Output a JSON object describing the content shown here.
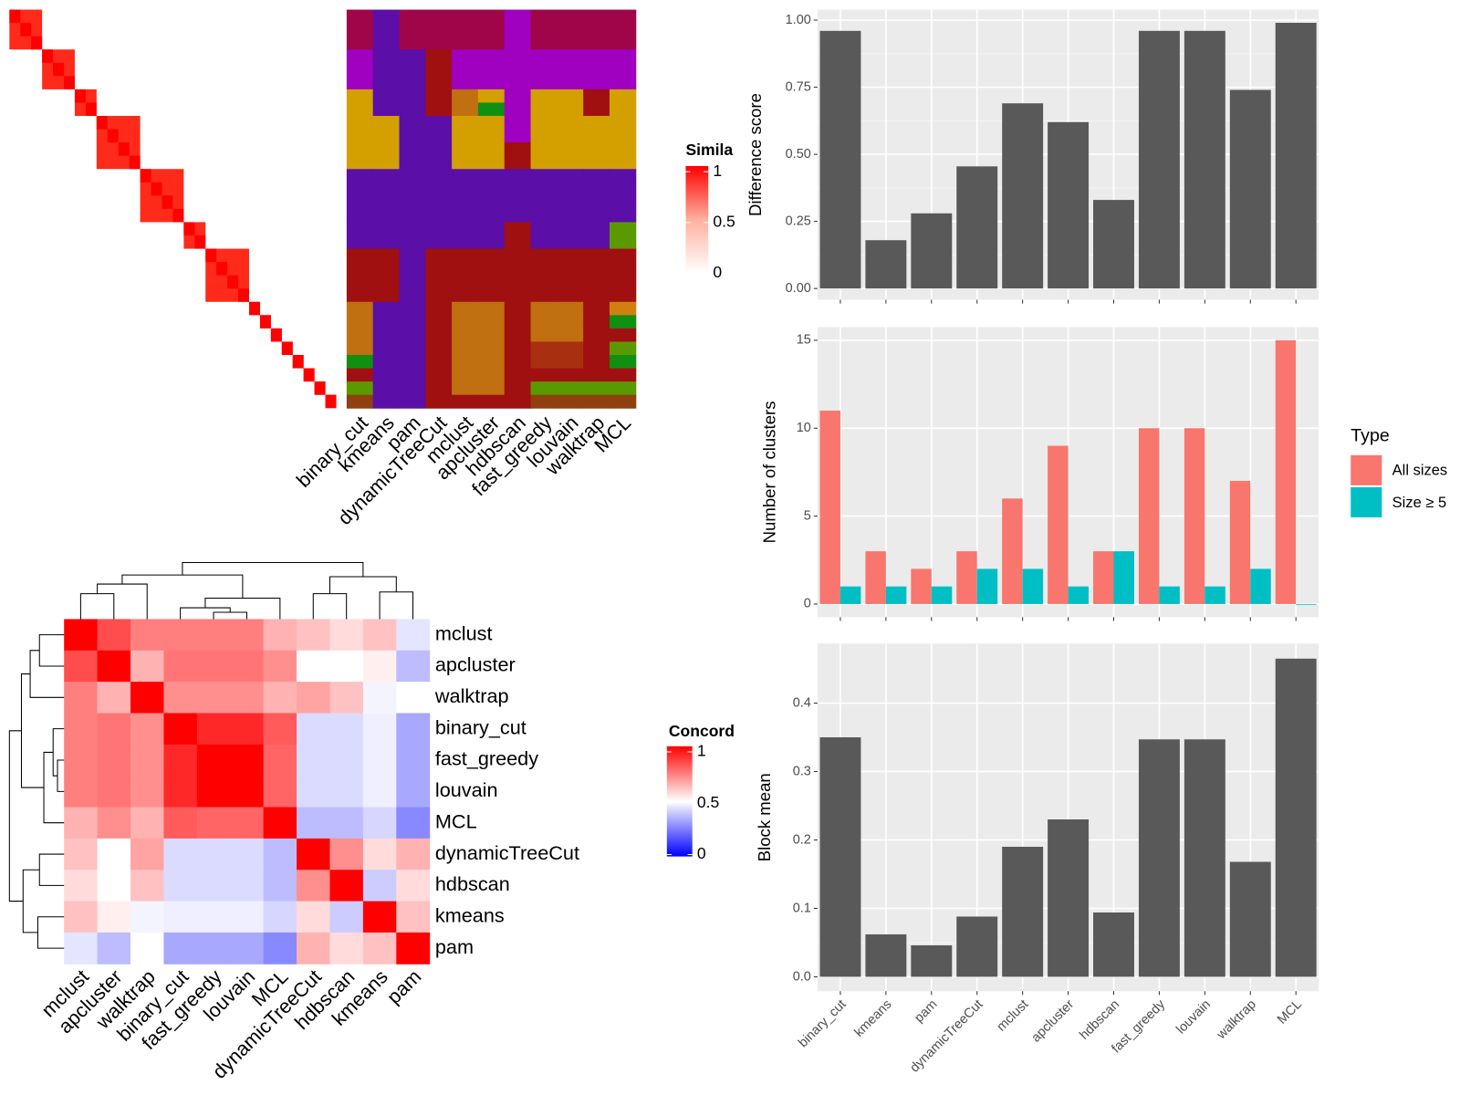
{
  "similarity": {
    "legend_title": "Simila",
    "ticks": [
      1,
      0.5,
      0
    ],
    "blocks": [
      3,
      3,
      2,
      4,
      4,
      2,
      4,
      1,
      1,
      1,
      1,
      1,
      1,
      1,
      1
    ]
  },
  "assignment": {
    "methods": [
      "binary_cut",
      "kmeans",
      "pam",
      "dynamicTreeCut",
      "mclust",
      "apcluster",
      "hdbscan",
      "fast_greedy",
      "louvain",
      "walktrap",
      "MCL"
    ],
    "rows": [
      {
        "n": 3,
        "colors": [
          "#a0054a",
          "#5b0fa8",
          "#a0054a",
          "#a0054a",
          "#a0054a",
          "#a0054a",
          "#a000c0",
          "#a0054a",
          "#a0054a",
          "#a0054a",
          "#a0054a"
        ]
      },
      {
        "n": 3,
        "colors": [
          "#a000c0",
          "#5b0fa8",
          "#5b0fa8",
          "#a01010",
          "#a000c0",
          "#a000c0",
          "#a000c0",
          "#a000c0",
          "#a000c0",
          "#a000c0",
          "#a000c0"
        ]
      },
      {
        "n": 1,
        "colors": [
          "#d4a000",
          "#5b0fa8",
          "#5b0fa8",
          "#a01010",
          "#c07010",
          "#d4a000",
          "#a000c0",
          "#d4a000",
          "#d4a000",
          "#a01010",
          "#d4a000"
        ]
      },
      {
        "n": 1,
        "colors": [
          "#d4a000",
          "#5b0fa8",
          "#5b0fa8",
          "#a01010",
          "#c07010",
          "#109010",
          "#a000c0",
          "#d4a000",
          "#d4a000",
          "#a01010",
          "#d4a000"
        ]
      },
      {
        "n": 2,
        "colors": [
          "#d4a000",
          "#d4a000",
          "#5b0fa8",
          "#5b0fa8",
          "#d4a000",
          "#d4a000",
          "#a000c0",
          "#d4a000",
          "#d4a000",
          "#d4a000",
          "#d4a000"
        ]
      },
      {
        "n": 2,
        "colors": [
          "#d4a000",
          "#d4a000",
          "#5b0fa8",
          "#5b0fa8",
          "#d4a000",
          "#d4a000",
          "#a01010",
          "#d4a000",
          "#d4a000",
          "#d4a000",
          "#d4a000"
        ]
      },
      {
        "n": 4,
        "colors": [
          "#5b0fa8",
          "#5b0fa8",
          "#5b0fa8",
          "#5b0fa8",
          "#5b0fa8",
          "#5b0fa8",
          "#5b0fa8",
          "#5b0fa8",
          "#5b0fa8",
          "#5b0fa8",
          "#5b0fa8"
        ]
      },
      {
        "n": 2,
        "colors": [
          "#5b0fa8",
          "#5b0fa8",
          "#5b0fa8",
          "#5b0fa8",
          "#5b0fa8",
          "#5b0fa8",
          "#a01010",
          "#5b0fa8",
          "#5b0fa8",
          "#5b0fa8",
          "#5a9a00"
        ]
      },
      {
        "n": 4,
        "colors": [
          "#a01010",
          "#a01010",
          "#5b0fa8",
          "#a01010",
          "#a01010",
          "#a01010",
          "#a01010",
          "#a01010",
          "#a01010",
          "#a01010",
          "#a01010"
        ]
      },
      {
        "n": 1,
        "colors": [
          "#c07010",
          "#5b0fa8",
          "#5b0fa8",
          "#a01010",
          "#c07010",
          "#c07010",
          "#a01010",
          "#c07010",
          "#c07010",
          "#a01010",
          "#d08010"
        ]
      },
      {
        "n": 1,
        "colors": [
          "#c07010",
          "#5b0fa8",
          "#5b0fa8",
          "#a01010",
          "#c07010",
          "#c07010",
          "#a01010",
          "#c07010",
          "#c07010",
          "#a01010",
          "#109010"
        ]
      },
      {
        "n": 1,
        "colors": [
          "#c07010",
          "#5b0fa8",
          "#5b0fa8",
          "#a01010",
          "#c07010",
          "#c07010",
          "#a01010",
          "#c07010",
          "#c07010",
          "#a01010",
          "#a01010"
        ]
      },
      {
        "n": 1,
        "colors": [
          "#c07010",
          "#5b0fa8",
          "#5b0fa8",
          "#a01010",
          "#c07010",
          "#c07010",
          "#a01010",
          "#a83010",
          "#a83010",
          "#a01010",
          "#5a9a00"
        ]
      },
      {
        "n": 1,
        "colors": [
          "#109010",
          "#5b0fa8",
          "#5b0fa8",
          "#a01010",
          "#c07010",
          "#c07010",
          "#a01010",
          "#a83010",
          "#a83010",
          "#a01010",
          "#109010"
        ]
      },
      {
        "n": 1,
        "colors": [
          "#a01010",
          "#5b0fa8",
          "#5b0fa8",
          "#a01010",
          "#c07010",
          "#c07010",
          "#a01010",
          "#a01010",
          "#a01010",
          "#a01010",
          "#a01010"
        ]
      },
      {
        "n": 1,
        "colors": [
          "#5a9a00",
          "#5b0fa8",
          "#5b0fa8",
          "#a01010",
          "#c07010",
          "#c07010",
          "#a01010",
          "#5a9a00",
          "#5a9a00",
          "#5a9a00",
          "#5a9a00"
        ]
      },
      {
        "n": 1,
        "colors": [
          "#904010",
          "#5b0fa8",
          "#5b0fa8",
          "#a01010",
          "#a01010",
          "#a01010",
          "#a01010",
          "#904010",
          "#904010",
          "#904010",
          "#904010"
        ]
      }
    ]
  },
  "concordance": {
    "legend_title": "Concord",
    "ticks": [
      1,
      0.5,
      0
    ],
    "labels": [
      "mclust",
      "apcluster",
      "walktrap",
      "binary_cut",
      "fast_greedy",
      "louvain",
      "MCL",
      "dynamicTreeCut",
      "hdbscan",
      "kmeans",
      "pam"
    ],
    "matrix": [
      [
        1,
        0.85,
        0.75,
        0.75,
        0.75,
        0.75,
        0.65,
        0.62,
        0.57,
        0.62,
        0.45
      ],
      [
        0.85,
        1,
        0.65,
        0.77,
        0.77,
        0.77,
        0.72,
        0.5,
        0.5,
        0.53,
        0.37
      ],
      [
        0.75,
        0.65,
        1,
        0.72,
        0.72,
        0.72,
        0.65,
        0.68,
        0.62,
        0.48,
        0.5
      ],
      [
        0.75,
        0.77,
        0.72,
        1,
        0.92,
        0.92,
        0.82,
        0.43,
        0.43,
        0.47,
        0.33
      ],
      [
        0.75,
        0.77,
        0.72,
        0.92,
        1,
        1,
        0.8,
        0.43,
        0.43,
        0.47,
        0.33
      ],
      [
        0.75,
        0.77,
        0.72,
        0.92,
        1,
        1,
        0.8,
        0.43,
        0.43,
        0.47,
        0.33
      ],
      [
        0.65,
        0.72,
        0.65,
        0.82,
        0.8,
        0.8,
        1,
        0.37,
        0.37,
        0.42,
        0.27
      ],
      [
        0.62,
        0.5,
        0.68,
        0.43,
        0.43,
        0.43,
        0.37,
        1,
        0.72,
        0.57,
        0.65
      ],
      [
        0.57,
        0.5,
        0.62,
        0.43,
        0.43,
        0.43,
        0.37,
        0.72,
        1,
        0.4,
        0.57
      ],
      [
        0.62,
        0.53,
        0.48,
        0.47,
        0.47,
        0.47,
        0.42,
        0.57,
        0.4,
        1,
        0.62
      ],
      [
        0.45,
        0.37,
        0.5,
        0.33,
        0.33,
        0.33,
        0.27,
        0.65,
        0.57,
        0.62,
        1
      ]
    ]
  },
  "chart_data": [
    {
      "type": "bar",
      "y_label": "Difference score",
      "color": "#595959",
      "values": [
        0.96,
        0.18,
        0.28,
        0.455,
        0.69,
        0.62,
        0.33,
        0.96,
        0.96,
        0.74,
        0.99
      ],
      "ylim": [
        -0.042,
        1.039
      ],
      "yticks": [
        {
          "value": 0,
          "label": "0.00"
        },
        {
          "value": 0.25,
          "label": "0.25"
        },
        {
          "value": 0.5,
          "label": "0.50"
        },
        {
          "value": 0.75,
          "label": "0.75"
        },
        {
          "value": 1,
          "label": "1.00"
        }
      ],
      "grid": true
    },
    {
      "type": "bar",
      "y_label": "Number of clusters",
      "legend_title": "Type",
      "legend": "right",
      "series": [
        {
          "name": "All sizes",
          "color": "#f8766d",
          "values": [
            11,
            3,
            2,
            3,
            6,
            9,
            3,
            10,
            10,
            7,
            15
          ]
        },
        {
          "name": "Size ≥ 5",
          "color": "#00bfc4",
          "values": [
            1,
            1,
            1,
            2,
            2,
            1,
            3,
            1,
            1,
            2,
            0
          ]
        }
      ],
      "ylim": [
        -0.75,
        15.75
      ],
      "yticks": [
        0,
        5,
        10,
        15
      ],
      "grid": true
    },
    {
      "type": "bar",
      "y_label": "Block mean",
      "color": "#595959",
      "categories": [
        "binary_cut",
        "kmeans",
        "pam",
        "dynamicTreeCut",
        "mclust",
        "apcluster",
        "hdbscan",
        "fast_greedy",
        "louvain",
        "walktrap",
        "MCL"
      ],
      "values": [
        0.35,
        0.062,
        0.046,
        0.088,
        0.19,
        0.23,
        0.094,
        0.347,
        0.347,
        0.168,
        0.465
      ],
      "ylim": [
        -0.021,
        0.487
      ],
      "yticks": [
        {
          "value": 0,
          "label": "0.0"
        },
        0.1,
        0.2,
        0.3,
        0.4
      ],
      "grid": true
    }
  ]
}
